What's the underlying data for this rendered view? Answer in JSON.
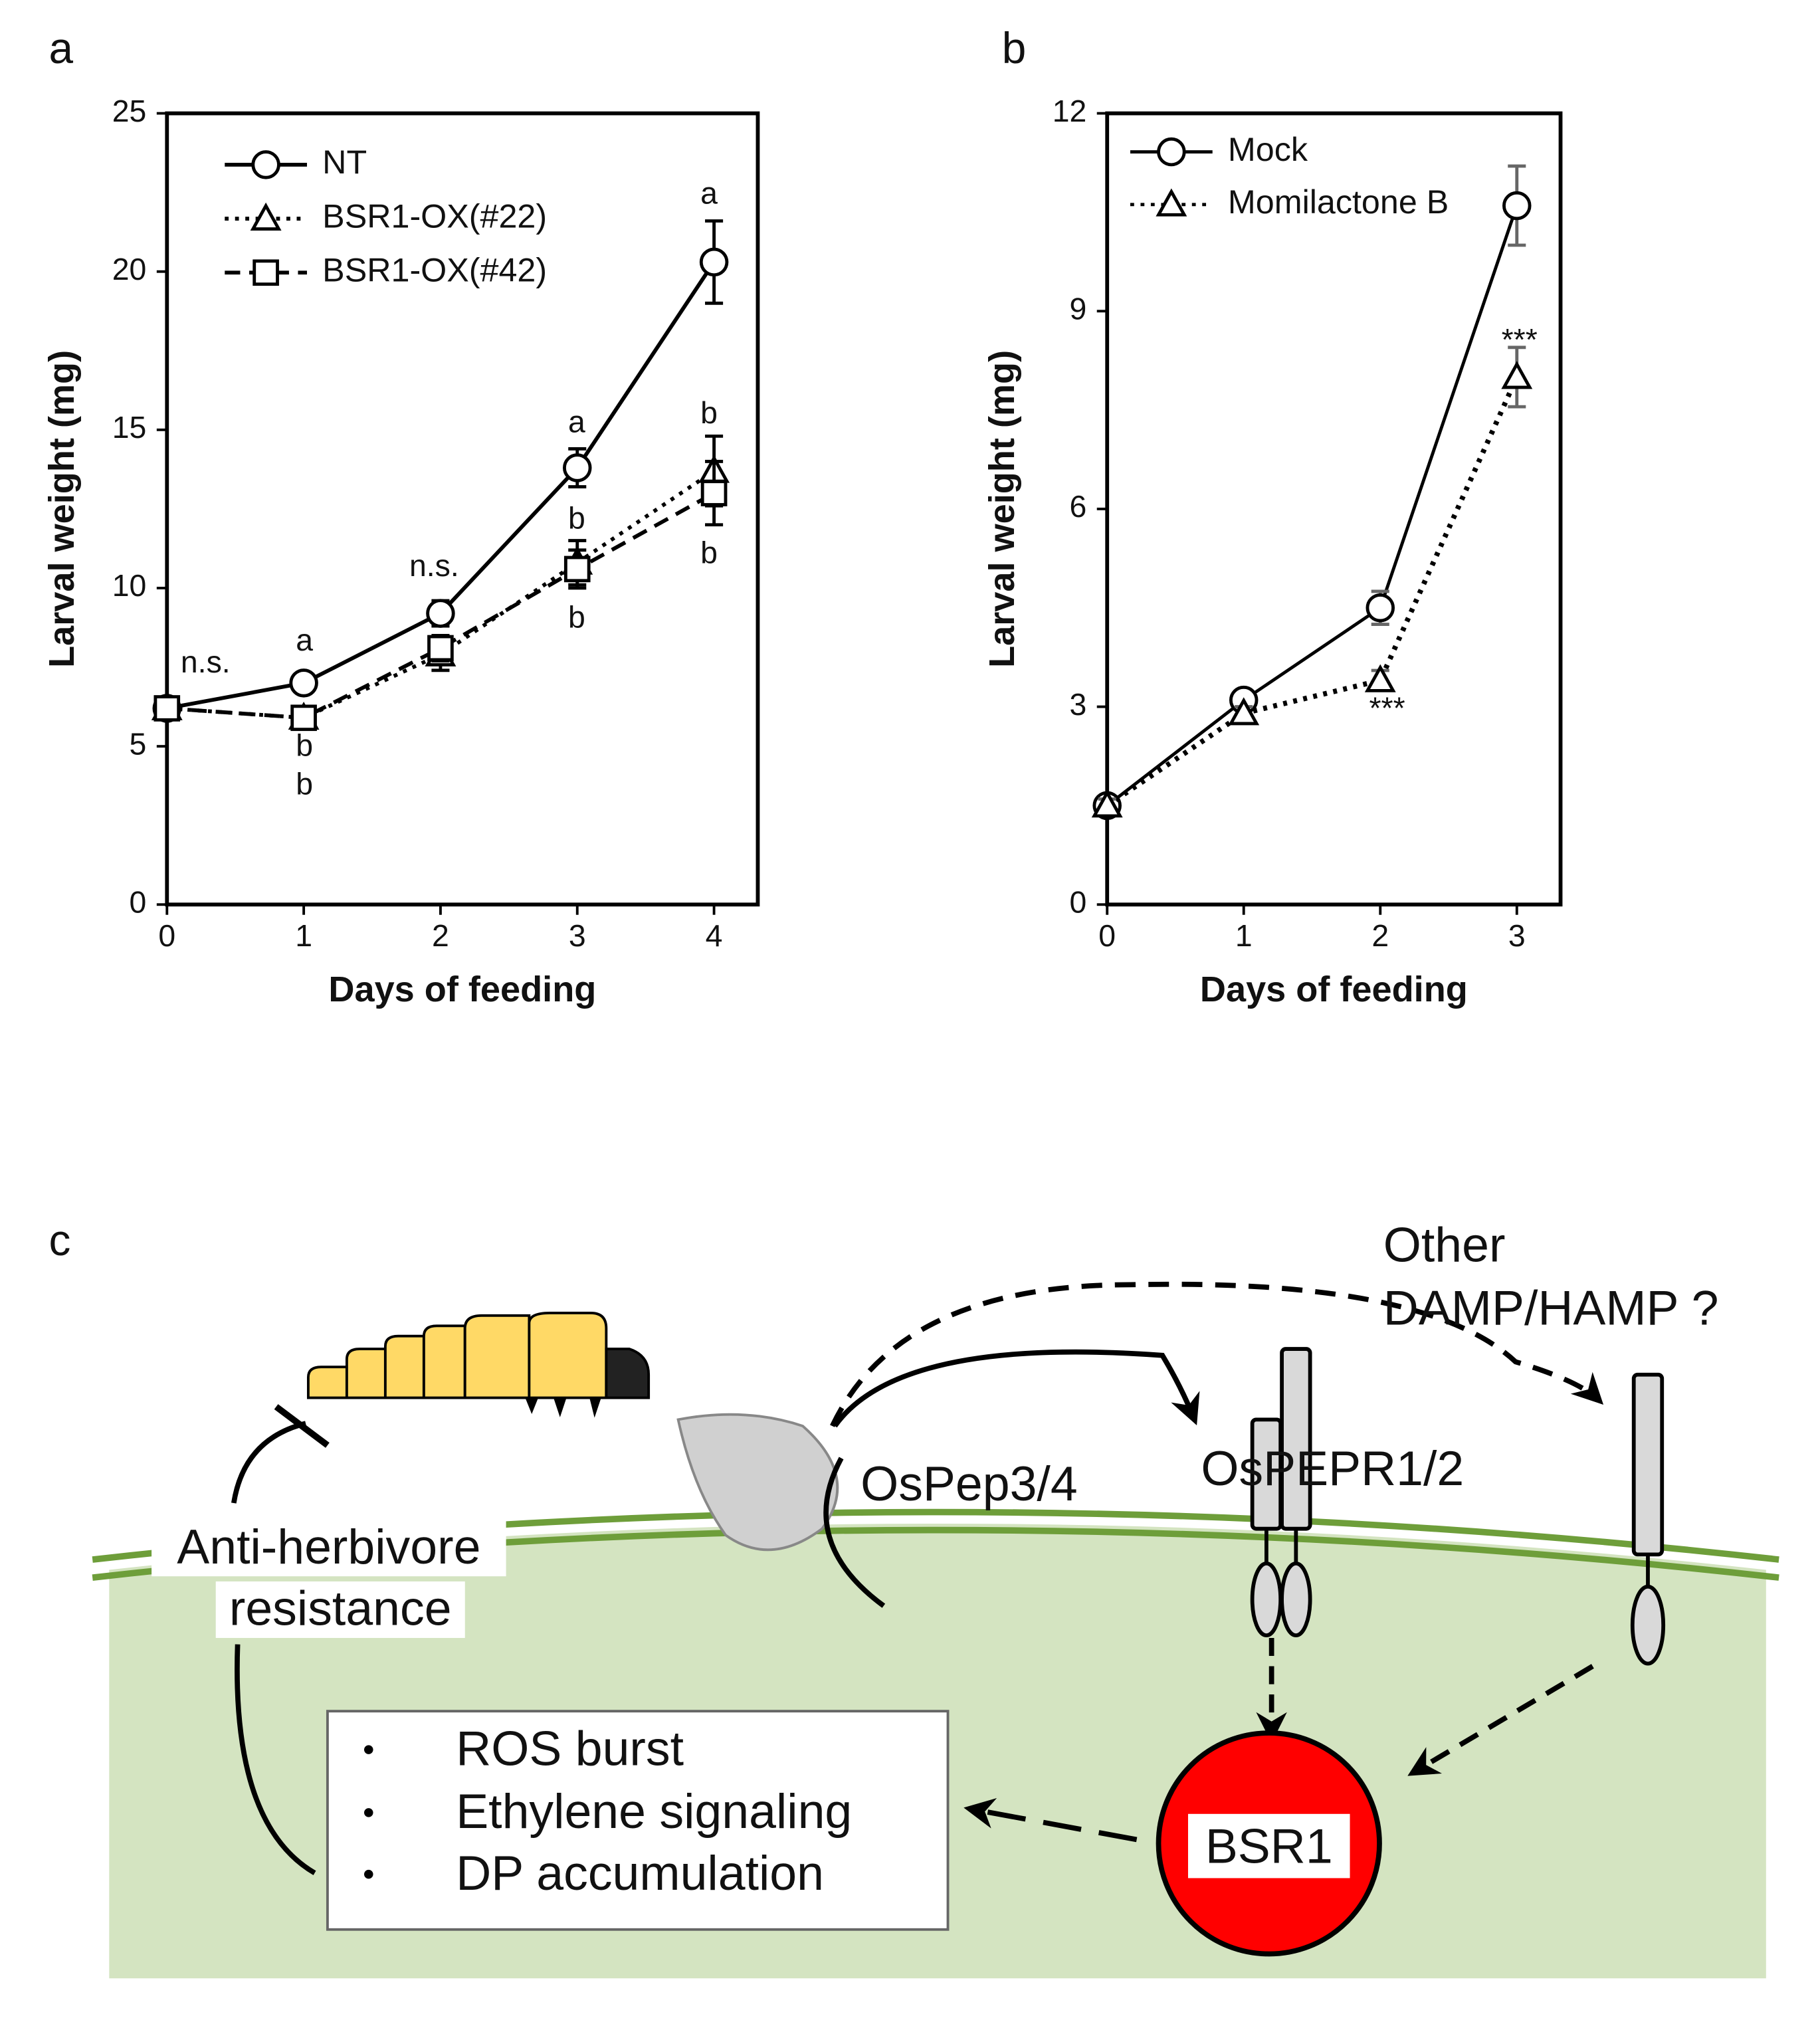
{
  "chart_data": [
    {
      "type": "line",
      "panel": "a",
      "xlabel": "Days of feeding",
      "ylabel": "Larval weight (mg)",
      "x": [
        0,
        1,
        2,
        3,
        4
      ],
      "xlim": [
        0,
        4.32
      ],
      "xticks": [
        0,
        1,
        2,
        3,
        4
      ],
      "ylim": [
        0,
        25
      ],
      "yticks": [
        0,
        5,
        10,
        15,
        20,
        25
      ],
      "series": [
        {
          "name": "NT",
          "color": "#000000",
          "marker": "circle",
          "line_style": "solid",
          "values": [
            6.2,
            7.0,
            9.2,
            13.8,
            20.3
          ],
          "errors": [
            0.2,
            0.3,
            0.4,
            0.6,
            1.3
          ]
        },
        {
          "name": "BSR1-OX(#22)",
          "color": "#000000",
          "marker": "triangle",
          "line_style": "dotted",
          "values": [
            6.2,
            5.9,
            7.9,
            10.8,
            13.7
          ],
          "errors": [
            0.2,
            0.3,
            0.5,
            0.7,
            1.1
          ]
        },
        {
          "name": "BSR1-OX(#42)",
          "color": "#000000",
          "marker": "square",
          "line_style": "dashed",
          "values": [
            6.2,
            5.9,
            8.1,
            10.6,
            13.0
          ],
          "errors": [
            0.2,
            0.3,
            0.4,
            0.6,
            1.0
          ]
        }
      ],
      "annotations": [
        "n.s.",
        "a",
        "b",
        "b",
        "n.s.",
        "a",
        "b",
        "b",
        "a",
        "b",
        "b"
      ]
    },
    {
      "type": "line",
      "panel": "b",
      "xlabel": "Days of feeding",
      "ylabel": "Larval weight (mg)",
      "x": [
        0,
        1,
        2,
        3
      ],
      "xlim": [
        0,
        3.32
      ],
      "xticks": [
        0,
        1,
        2,
        3
      ],
      "ylim": [
        0,
        12
      ],
      "yticks": [
        0,
        3,
        6,
        9,
        12
      ],
      "series": [
        {
          "name": "Mock",
          "color": "#000000",
          "marker": "circle",
          "line_style": "solid",
          "values": [
            1.5,
            3.1,
            4.5,
            10.6
          ],
          "errors": [
            0.1,
            0.15,
            0.25,
            0.6
          ]
        },
        {
          "name": "Momilactone B",
          "color": "#000000",
          "marker": "triangle",
          "line_style": "dotted",
          "values": [
            1.5,
            2.9,
            3.4,
            8.0
          ],
          "errors": [
            0.1,
            0.1,
            0.15,
            0.45
          ]
        }
      ],
      "annotations": [
        "***",
        "***"
      ]
    }
  ],
  "diagram": {
    "panel": "c",
    "other": [
      "Other",
      "DAMP/HAMP ?"
    ],
    "ligand": "OsPep3/4",
    "receptor": "OsPEPR1/2",
    "resistance": [
      "Anti-herbivore",
      "resistance"
    ],
    "bullets": [
      "ROS burst",
      "Ethylene signaling",
      "DP accumulation"
    ],
    "hub": "BSR1"
  }
}
